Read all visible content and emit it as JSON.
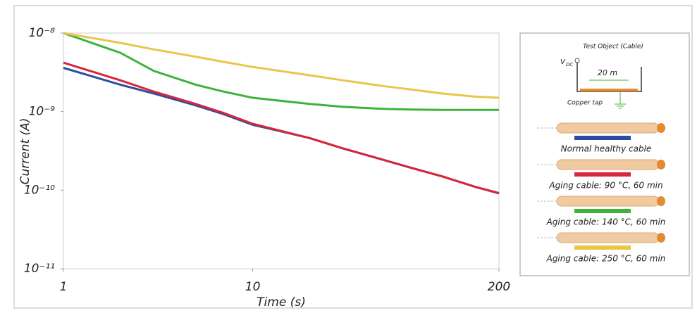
{
  "chart_data": {
    "type": "line",
    "x_label": "Time (s)",
    "y_label": "Current (A)",
    "x": [
      1,
      2,
      3,
      5,
      7,
      10,
      20,
      30,
      50,
      70,
      100,
      150,
      200
    ],
    "series": [
      {
        "name": "Normal healthy cable",
        "color": "#2a4fa0",
        "values": [
          3.6e-09,
          2.2e-09,
          1.7e-09,
          1.2e-09,
          9.3e-10,
          6.8e-10,
          4.6e-10,
          3.4e-10,
          2.4e-10,
          1.9e-10,
          1.5e-10,
          1.1e-10,
          9.1e-11
        ]
      },
      {
        "name": "Aging cable: 90 °C, 60 min",
        "color": "#d8263a",
        "values": [
          4.2e-09,
          2.5e-09,
          1.8e-09,
          1.25e-09,
          9.6e-10,
          7e-10,
          4.6e-10,
          3.4e-10,
          2.4e-10,
          1.9e-10,
          1.5e-10,
          1.1e-10,
          9.2e-11
        ]
      },
      {
        "name": "Aging cable: 140 °C, 60 min",
        "color": "#3db33a",
        "values": [
          1e-08,
          5.6e-09,
          3.3e-09,
          2.2e-09,
          1.8e-09,
          1.5e-09,
          1.25e-09,
          1.15e-09,
          1.08e-09,
          1.06e-09,
          1.05e-09,
          1.05e-09,
          1.05e-09
        ]
      },
      {
        "name": "Aging cable: 250 °C, 60 min",
        "color": "#e8c64a",
        "values": [
          1e-08,
          7.5e-09,
          6.2e-09,
          5e-09,
          4.3e-09,
          3.7e-09,
          2.9e-09,
          2.5e-09,
          2.1e-09,
          1.9e-09,
          1.7e-09,
          1.55e-09,
          1.5e-09
        ]
      }
    ],
    "xlim": [
      1,
      200
    ],
    "xticks": [
      1,
      10,
      200
    ],
    "x_log": true,
    "ylim": [
      1e-11,
      1e-08
    ],
    "y_log": true,
    "yticks": [
      {
        "value": 1e-11,
        "label": "10⁻¹¹"
      },
      {
        "value": 1e-10,
        "label": "10⁻¹⁰"
      },
      {
        "value": 1e-09,
        "label": "10⁻⁹"
      },
      {
        "value": 1e-08,
        "label": "10⁻⁸"
      }
    ],
    "annotations": [
      "Test Object (Cable)",
      "V",
      "DC",
      "20 m",
      "Copper tap"
    ]
  }
}
